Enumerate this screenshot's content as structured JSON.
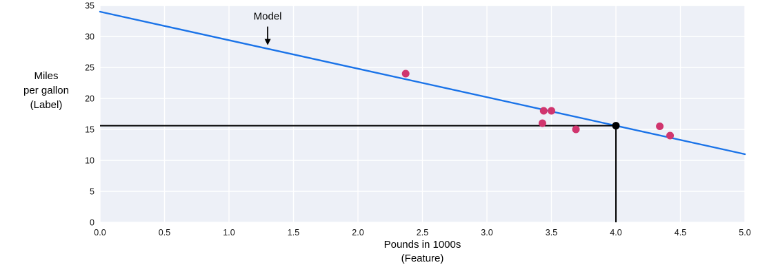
{
  "chart_data": {
    "type": "scatter",
    "title": "",
    "xlabel_lines": [
      "Pounds in 1000s",
      "(Feature)"
    ],
    "ylabel_lines": [
      "Miles",
      "per gallon",
      "(Label)"
    ],
    "xlim": [
      0.0,
      5.0
    ],
    "ylim": [
      0,
      35
    ],
    "xticks": [
      0,
      0.5,
      1.0,
      1.5,
      2.0,
      2.5,
      3.0,
      3.5,
      4.0,
      4.5,
      5.0
    ],
    "xtick_labels": [
      "0.0",
      "0.5",
      "1.0",
      "1.5",
      "2.0",
      "2.5",
      "3.0",
      "3.5",
      "4.0",
      "4.5",
      "5.0"
    ],
    "yticks": [
      0,
      5,
      10,
      15,
      20,
      25,
      30,
      35
    ],
    "ytick_labels": [
      "0",
      "5",
      "10",
      "15",
      "20",
      "25",
      "30",
      "35"
    ],
    "grid": true,
    "legend": "none",
    "series": [
      {
        "name": "observed-data",
        "type": "scatter",
        "color": "#d0356e",
        "points": [
          [
            2.37,
            24
          ],
          [
            3.43,
            16
          ],
          [
            3.44,
            18
          ],
          [
            3.5,
            18
          ],
          [
            3.69,
            15
          ],
          [
            4.34,
            15.5
          ],
          [
            4.42,
            14
          ]
        ]
      }
    ],
    "model_line": {
      "name": "model",
      "color": "#1a73e8",
      "x": [
        0.0,
        5.0
      ],
      "y": [
        34,
        11
      ]
    },
    "prediction": {
      "x": 4.0,
      "y": 15.6
    },
    "annotation": {
      "text": "Model",
      "text_x": 1.3,
      "text_y": 32.7,
      "arrow_from_y": 31.6,
      "arrow_to_y": 28.6
    },
    "colors": {
      "plot_bg": "#edf0f7",
      "grid": "#ffffff",
      "points": "#d0356e",
      "model_line": "#1a73e8",
      "prediction": "#000000",
      "text": "#000000",
      "tick_text": "#111111"
    }
  }
}
